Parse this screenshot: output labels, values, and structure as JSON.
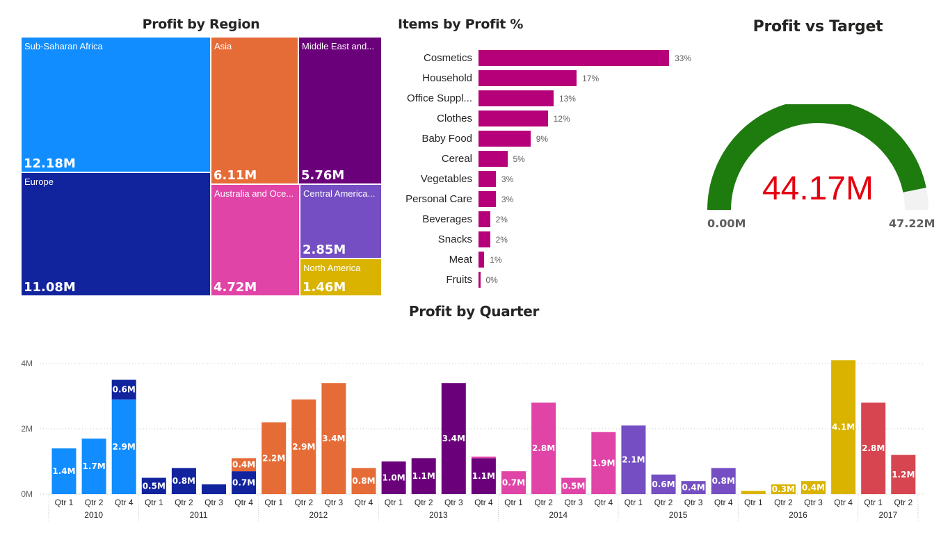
{
  "titles": {
    "treemap": "Profit by Region",
    "items": "Items by Profit %",
    "gauge": "Profit vs Target",
    "quarter": "Profit by Quarter"
  },
  "gauge": {
    "value": "44.17M",
    "min": "0.00M",
    "max": "47.22M",
    "fraction": 0.9354,
    "fill_color": "#1E7B0E",
    "track_color": "#F2F2F2",
    "value_color": "#E5000F"
  },
  "chart_data": [
    {
      "type": "treemap",
      "title": "Profit by Region",
      "items": [
        {
          "name": "Sub-Saharan Africa",
          "value": "12.18M",
          "color": "#118DFF"
        },
        {
          "name": "Europe",
          "value": "11.08M",
          "color": "#12239E"
        },
        {
          "name": "Asia",
          "value": "6.11M",
          "color": "#E66C37"
        },
        {
          "name": "Middle East and...",
          "value": "5.76M",
          "color": "#6B007B"
        },
        {
          "name": "Australia and Oce...",
          "value": "4.72M",
          "color": "#E044A7"
        },
        {
          "name": "Central America...",
          "value": "2.85M",
          "color": "#744EC2"
        },
        {
          "name": "North America",
          "value": "1.46M",
          "color": "#D9B300"
        }
      ]
    },
    {
      "type": "bar",
      "orientation": "horizontal",
      "title": "Items by Profit %",
      "color": "#B5007A",
      "categories": [
        "Cosmetics",
        "Household",
        "Office Suppl...",
        "Clothes",
        "Baby Food",
        "Cereal",
        "Vegetables",
        "Personal Care",
        "Beverages",
        "Snacks",
        "Meat",
        "Fruits"
      ],
      "values": [
        33,
        17,
        13,
        12,
        9,
        5,
        3,
        3,
        2,
        2,
        1,
        0
      ],
      "labels": [
        "33%",
        "17%",
        "13%",
        "12%",
        "9%",
        "5%",
        "3%",
        "3%",
        "2%",
        "2%",
        "1%",
        "0%"
      ]
    },
    {
      "type": "bar",
      "title": "Profit by Quarter",
      "ylim": [
        0,
        4.1
      ],
      "yticks": [
        {
          "v": 0,
          "label": "0M"
        },
        {
          "v": 2,
          "label": "2M"
        },
        {
          "v": 4,
          "label": "4M"
        }
      ],
      "years": [
        {
          "year": "2010",
          "color": "#118DFF",
          "quarters": [
            {
              "q": "Qtr 1",
              "value": 1.4,
              "label": "1.4M"
            },
            {
              "q": "Qtr 2",
              "value": 1.7,
              "label": "1.7M"
            },
            {
              "q": "Qtr 4",
              "value": 2.9,
              "label": "2.9M",
              "stack": {
                "value": 0.6,
                "label": "0.6M",
                "color": "#12239E"
              }
            }
          ]
        },
        {
          "year": "2011",
          "color": "#12239E",
          "quarters": [
            {
              "q": "Qtr 1",
              "value": 0.5,
              "label": "0.5M"
            },
            {
              "q": "Qtr 2",
              "value": 0.8,
              "label": "0.8M"
            },
            {
              "q": "Qtr 3",
              "value": 0.3,
              "label": ""
            },
            {
              "q": "Qtr 4",
              "value": 0.7,
              "label": "0.7M",
              "stack": {
                "value": 0.4,
                "label": "0.4M",
                "color": "#E66C37"
              }
            }
          ]
        },
        {
          "year": "2012",
          "color": "#E66C37",
          "quarters": [
            {
              "q": "Qtr 1",
              "value": 2.2,
              "label": "2.2M"
            },
            {
              "q": "Qtr 2",
              "value": 2.9,
              "label": "2.9M"
            },
            {
              "q": "Qtr 3",
              "value": 3.4,
              "label": "3.4M"
            },
            {
              "q": "Qtr 4",
              "value": 0.8,
              "label": "0.8M"
            }
          ]
        },
        {
          "year": "2013",
          "color": "#6B007B",
          "quarters": [
            {
              "q": "Qtr 1",
              "value": 1.0,
              "label": "1.0M"
            },
            {
              "q": "Qtr 2",
              "value": 1.1,
              "label": "1.1M"
            },
            {
              "q": "Qtr 3",
              "value": 3.4,
              "label": "3.4M"
            },
            {
              "q": "Qtr 4",
              "value": 1.1,
              "label": "1.1M",
              "stack": {
                "value": 0.05,
                "label": "",
                "color": "#E044A7"
              }
            }
          ]
        },
        {
          "year": "2014",
          "color": "#E044A7",
          "quarters": [
            {
              "q": "Qtr 1",
              "value": 0.7,
              "label": "0.7M"
            },
            {
              "q": "Qtr 2",
              "value": 2.8,
              "label": "2.8M"
            },
            {
              "q": "Qtr 3",
              "value": 0.5,
              "label": "0.5M"
            },
            {
              "q": "Qtr 4",
              "value": 1.9,
              "label": "1.9M"
            }
          ]
        },
        {
          "year": "2015",
          "color": "#744EC2",
          "quarters": [
            {
              "q": "Qtr 1",
              "value": 2.1,
              "label": "2.1M"
            },
            {
              "q": "Qtr 2",
              "value": 0.6,
              "label": "0.6M"
            },
            {
              "q": "Qtr 3",
              "value": 0.4,
              "label": "0.4M"
            },
            {
              "q": "Qtr 4",
              "value": 0.8,
              "label": "0.8M"
            }
          ]
        },
        {
          "year": "2016",
          "color": "#D9B300",
          "quarters": [
            {
              "q": "Qtr 1",
              "value": 0.1,
              "label": ""
            },
            {
              "q": "Qtr 2",
              "value": 0.3,
              "label": "0.3M"
            },
            {
              "q": "Qtr 3",
              "value": 0.4,
              "label": "0.4M"
            },
            {
              "q": "Qtr 4",
              "value": 4.1,
              "label": "4.1M"
            }
          ]
        },
        {
          "year": "2017",
          "color": "#D64550",
          "quarters": [
            {
              "q": "Qtr 1",
              "value": 2.8,
              "label": "2.8M"
            },
            {
              "q": "Qtr 2",
              "value": 1.2,
              "label": "1.2M"
            }
          ]
        }
      ]
    }
  ]
}
